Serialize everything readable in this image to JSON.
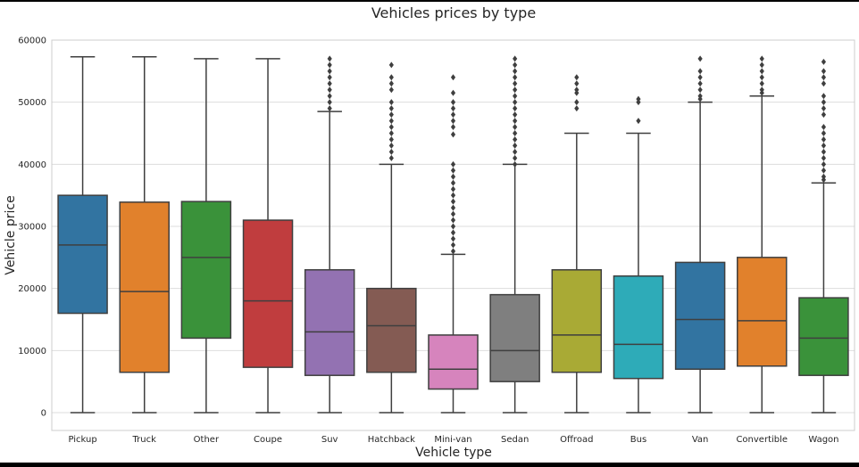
{
  "chart_data": {
    "type": "box",
    "title": "Vehicles prices by type",
    "xlabel": "Vehicle type",
    "ylabel": "Vehicle price",
    "ylim": [
      -3000,
      60000
    ],
    "yticks": [
      0,
      10000,
      20000,
      30000,
      40000,
      50000,
      60000
    ],
    "grid": "horizontal",
    "categories": [
      "Pickup",
      "Truck",
      "Other",
      "Coupe",
      "Suv",
      "Hatchback",
      "Mini-van",
      "Sedan",
      "Offroad",
      "Bus",
      "Van",
      "Convertible",
      "Wagon"
    ],
    "boxes": [
      {
        "category": "Pickup",
        "color": "#3274a1",
        "min": 0,
        "q1": 16000,
        "median": 27000,
        "q3": 35000,
        "max": 57300,
        "outliers": []
      },
      {
        "category": "Truck",
        "color": "#e1812c",
        "min": 0,
        "q1": 6500,
        "median": 19500,
        "q3": 33900,
        "max": 57300,
        "outliers": []
      },
      {
        "category": "Other",
        "color": "#3a923a",
        "min": 0,
        "q1": 12000,
        "median": 25000,
        "q3": 34000,
        "max": 57000,
        "outliers": []
      },
      {
        "category": "Coupe",
        "color": "#c03d3e",
        "min": 0,
        "q1": 7300,
        "median": 18000,
        "q3": 31000,
        "max": 57000,
        "outliers": []
      },
      {
        "category": "Suv",
        "color": "#9372b2",
        "min": 0,
        "q1": 6000,
        "median": 13000,
        "q3": 23000,
        "max": 48500,
        "outliers": [
          49000,
          50000,
          51000,
          52000,
          53000,
          54000,
          55000,
          56000,
          57000
        ]
      },
      {
        "category": "Hatchback",
        "color": "#845b53",
        "min": 0,
        "q1": 6500,
        "median": 14000,
        "q3": 20000,
        "max": 40000,
        "outliers": [
          41000,
          42000,
          43000,
          44000,
          45000,
          46000,
          47000,
          48000,
          49000,
          50000,
          52000,
          53000,
          54000,
          56000
        ]
      },
      {
        "category": "Mini-van",
        "color": "#d684bd",
        "min": 0,
        "q1": 3800,
        "median": 7000,
        "q3": 12500,
        "max": 25500,
        "outliers": [
          26000,
          27000,
          28000,
          29000,
          30000,
          31000,
          32000,
          33000,
          34000,
          35000,
          36000,
          37000,
          38000,
          39000,
          40000,
          44800,
          46000,
          47000,
          48000,
          49000,
          50000,
          51500,
          54000
        ]
      },
      {
        "category": "Sedan",
        "color": "#7f7f7f",
        "min": 0,
        "q1": 5000,
        "median": 10000,
        "q3": 19000,
        "max": 40000,
        "outliers": [
          40000,
          41000,
          42000,
          43000,
          44000,
          45000,
          46000,
          47000,
          48000,
          49000,
          50000,
          51000,
          52000,
          53000,
          54000,
          55000,
          56000,
          57000
        ]
      },
      {
        "category": "Offroad",
        "color": "#a9aa35",
        "min": 0,
        "q1": 6500,
        "median": 12500,
        "q3": 23000,
        "max": 45000,
        "outliers": [
          49000,
          50000,
          51500,
          52000,
          53000,
          54000
        ]
      },
      {
        "category": "Bus",
        "color": "#2eabb8",
        "min": 0,
        "q1": 5500,
        "median": 11000,
        "q3": 22000,
        "max": 45000,
        "outliers": [
          47000,
          50000,
          50500
        ]
      },
      {
        "category": "Van",
        "color": "#3274a1",
        "min": 0,
        "q1": 7000,
        "median": 15000,
        "q3": 24200,
        "max": 50000,
        "outliers": [
          50500,
          51000,
          52000,
          53000,
          54000,
          55000,
          57000
        ]
      },
      {
        "category": "Convertible",
        "color": "#e1812c",
        "min": 0,
        "q1": 7500,
        "median": 14800,
        "q3": 25000,
        "max": 51000,
        "outliers": [
          51500,
          52000,
          53000,
          54000,
          55000,
          56000,
          57000
        ]
      },
      {
        "category": "Wagon",
        "color": "#3a923a",
        "min": 0,
        "q1": 6000,
        "median": 12000,
        "q3": 18500,
        "max": 37000,
        "outliers": [
          37500,
          38000,
          39000,
          40000,
          41000,
          42000,
          43000,
          44000,
          45000,
          46000,
          48000,
          49000,
          50000,
          51000,
          53000,
          54000,
          55000,
          56500
        ]
      }
    ]
  }
}
